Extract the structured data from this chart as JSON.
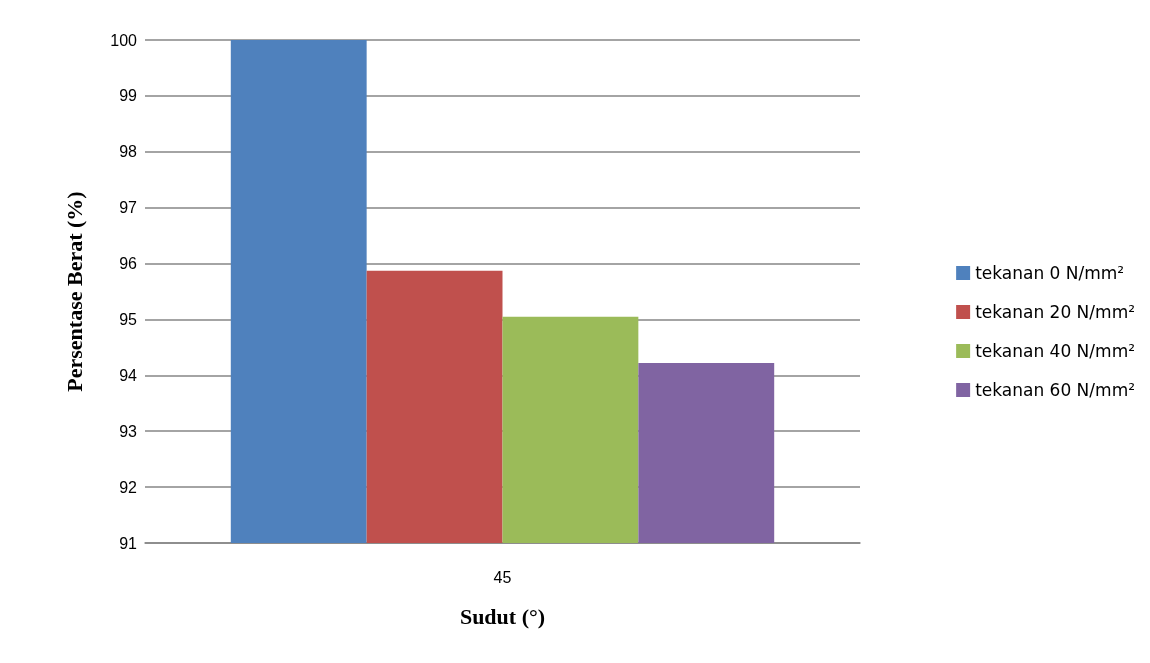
{
  "chart_data": {
    "type": "bar",
    "xlabel": "Sudut (°)",
    "ylabel": "Persentase Berat (%)",
    "categories": [
      "45"
    ],
    "series": [
      {
        "name": "tekanan 0 N/mm²",
        "color": "#4f81bd",
        "values": [
          100
        ]
      },
      {
        "name": "tekanan 20 N/mm²",
        "color": "#c0504d",
        "values": [
          95.87
        ]
      },
      {
        "name": "tekanan 40 N/mm²",
        "color": "#9bbb59",
        "values": [
          95.05
        ]
      },
      {
        "name": "tekanan 60 N/mm²",
        "color": "#8064a2",
        "values": [
          94.22
        ]
      }
    ],
    "ylim": [
      91,
      100
    ],
    "yticks": [
      91,
      92,
      93,
      94,
      95,
      96,
      97,
      98,
      99,
      100
    ],
    "grid": "y",
    "legend": "right"
  }
}
